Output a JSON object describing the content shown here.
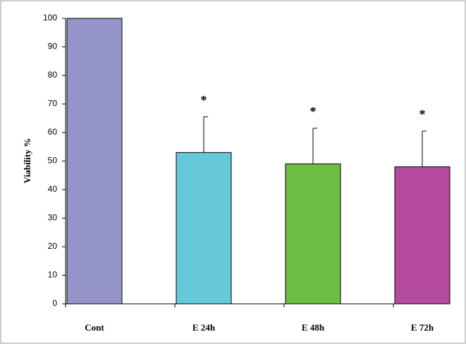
{
  "chart_data": {
    "type": "bar",
    "y_label": "Viability %",
    "categories": [
      "Cont",
      "E 24h",
      "E 48h",
      "E 72h"
    ],
    "values": [
      100,
      53,
      49,
      48
    ],
    "errors": [
      null,
      12.5,
      12.5,
      12.5
    ],
    "colors": [
      "#9494c8",
      "#66c9d8",
      "#6dbe45",
      "#b44b9c"
    ],
    "annotations": [
      null,
      "*",
      "*",
      "*"
    ],
    "ylim": [
      0,
      100
    ],
    "yticks": [
      0,
      10,
      20,
      30,
      40,
      50,
      60,
      70,
      80,
      90,
      100
    ],
    "grid": false
  }
}
